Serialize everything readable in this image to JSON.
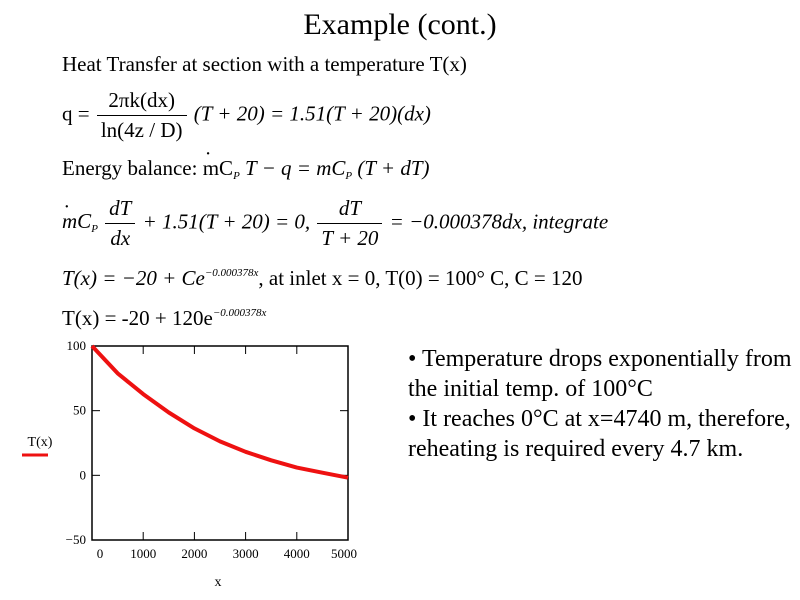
{
  "slide": {
    "title": "Example (cont.)",
    "line1": "Heat Transfer at section with a temperature T(x)",
    "eq_q": {
      "lhs": "q =",
      "num": "2πk(dx)",
      "den": "ln(4z / D)",
      "rhs": "(T + 20) = 1.51(T + 20)(dx)"
    },
    "eq_energy": {
      "label": "Energy balance:",
      "expr": "mC",
      "sub": "P",
      "rest": "T − q = mC",
      "sub2": "P",
      "rest2": "(T + dT)"
    },
    "eq_diff": {
      "a": "mC",
      "sub": "P",
      "num1": "dT",
      "den1": "dx",
      "mid": "+ 1.51(T + 20) = 0,",
      "num2": "dT",
      "den2": "T + 20",
      "end": "= −0.000378dx, integrate"
    },
    "eq_sol": {
      "a": "T(x) = −20 + Ce",
      "exp": "−0.000378x",
      "b": ", at inlet x = 0,  T(0) = 100° C,  C = 120"
    },
    "eq_final": {
      "a": "T(x) = -20 + 120e",
      "exp": "−0.000378x"
    },
    "bullets": [
      "• Temperature drops exponentially from the initial temp. of 100°C",
      "• It reaches 0°C at x=4740 m, therefore, reheating is required every 4.7 km."
    ]
  },
  "chart_data": {
    "type": "line",
    "xlabel": "x",
    "ylabel": "",
    "legend_label": "T(x)",
    "series_color": "#ee1111",
    "xlim": [
      0,
      5000
    ],
    "ylim": [
      -50,
      100
    ],
    "xticks": [
      0,
      1000,
      2000,
      3000,
      4000,
      5000
    ],
    "xtick_labels": [
      "0",
      "1000",
      "2000",
      "3000",
      "4000",
      "5000"
    ],
    "yticks": [
      -50,
      0,
      50,
      100
    ],
    "ytick_labels": [
      "−50",
      "0",
      "50",
      "100"
    ],
    "series": [
      {
        "name": "T(x)",
        "x": [
          0,
          500,
          1000,
          1500,
          2000,
          2500,
          3000,
          3500,
          4000,
          4500,
          5000
        ],
        "y": [
          100,
          78.9,
          62.8,
          48.6,
          36.3,
          26.2,
          18.2,
          11.6,
          6.0,
          2.0,
          -1.8
        ]
      }
    ]
  }
}
